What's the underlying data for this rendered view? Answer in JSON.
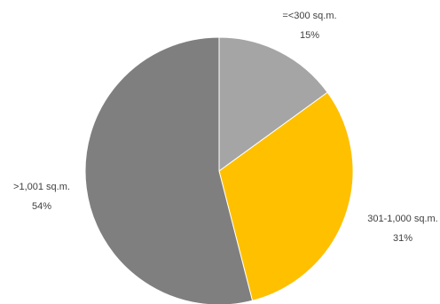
{
  "chart_data": {
    "type": "pie",
    "title": "",
    "slices": [
      {
        "label": "=<300 sq.m.",
        "value": 15,
        "value_label": "15%",
        "color": "#a5a5a5"
      },
      {
        "label": "301-1,000 sq.m.",
        "value": 31,
        "value_label": "31%",
        "color": "#ffc000"
      },
      {
        "label": ">1,001 sq.m.",
        "value": 54,
        "value_label": "54%",
        "color": "#7f7f7f"
      }
    ],
    "start_angle_deg": 0,
    "direction": "clockwise",
    "legend": "none",
    "data_labels": "outside"
  }
}
